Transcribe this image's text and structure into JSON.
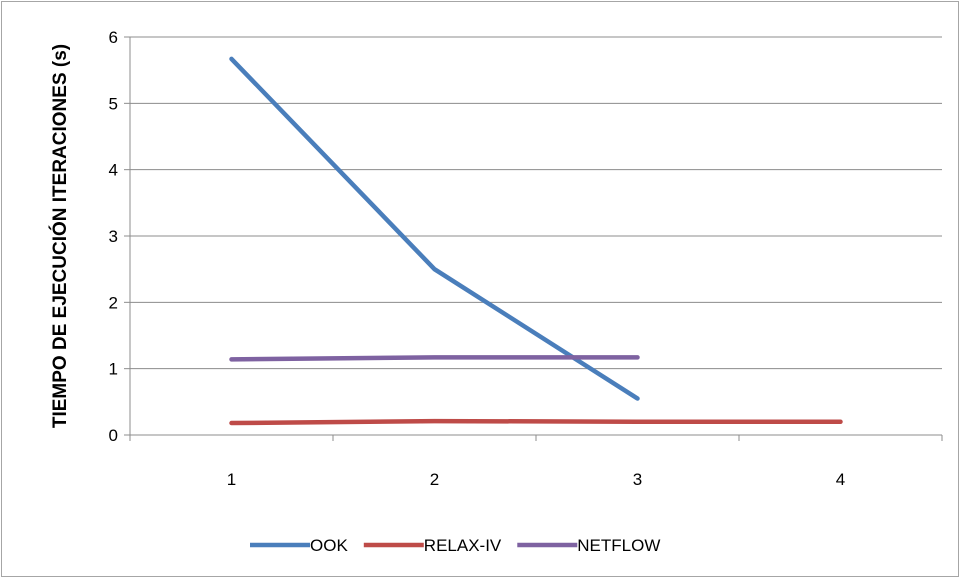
{
  "chart_data": {
    "type": "line",
    "title": "",
    "xlabel": "",
    "ylabel": "TIEMPO DE EJECUCIÓN ITERACIONES (s)",
    "categories": [
      "1",
      "2",
      "3",
      "4"
    ],
    "ylim": [
      0,
      6
    ],
    "yticks": [
      0,
      1,
      2,
      3,
      4,
      5,
      6
    ],
    "grid": true,
    "legend": "bottom",
    "series": [
      {
        "name": "OOK",
        "color": "#4a7ebb",
        "values": [
          5.67,
          2.5,
          0.55,
          null
        ]
      },
      {
        "name": "RELAX-IV",
        "color": "#be4b48",
        "values": [
          0.18,
          0.21,
          0.2,
          0.2
        ]
      },
      {
        "name": "NETFLOW",
        "color": "#7e62a1",
        "values": [
          1.14,
          1.17,
          1.17,
          null
        ]
      }
    ]
  }
}
